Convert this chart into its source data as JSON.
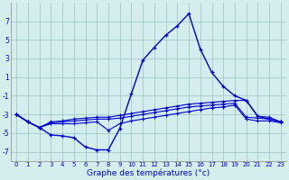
{
  "xlabel": "Graphe des températures (°c)",
  "x": [
    0,
    1,
    2,
    3,
    4,
    5,
    6,
    7,
    8,
    9,
    10,
    11,
    12,
    13,
    14,
    15,
    16,
    17,
    18,
    19,
    20,
    21,
    22,
    23
  ],
  "y_main": [
    -3.0,
    -3.8,
    -4.4,
    -5.2,
    -5.3,
    -5.5,
    -6.5,
    -6.8,
    -6.8,
    -4.5,
    -0.8,
    2.8,
    4.2,
    5.5,
    6.5,
    7.8,
    4.0,
    1.5,
    0.0,
    -1.0,
    -1.5,
    -3.2,
    -3.5,
    -3.8
  ],
  "y_mid1": [
    -3.0,
    -3.8,
    -4.4,
    -3.8,
    -3.7,
    -3.5,
    -3.4,
    -3.3,
    -3.3,
    -3.1,
    -2.9,
    -2.7,
    -2.5,
    -2.3,
    -2.1,
    -1.9,
    -1.8,
    -1.7,
    -1.6,
    -1.5,
    -1.5,
    -3.2,
    -3.3,
    -3.8
  ],
  "y_mid2": [
    -3.0,
    -3.8,
    -4.4,
    -3.9,
    -3.8,
    -3.7,
    -3.6,
    -3.5,
    -3.5,
    -3.4,
    -3.2,
    -3.0,
    -2.8,
    -2.6,
    -2.4,
    -2.2,
    -2.1,
    -2.0,
    -1.9,
    -1.8,
    -3.3,
    -3.4,
    -3.5,
    -3.8
  ],
  "y_bot": [
    -3.0,
    -3.8,
    -4.4,
    -4.0,
    -4.0,
    -4.0,
    -3.9,
    -3.8,
    -4.7,
    -4.0,
    -3.7,
    -3.5,
    -3.3,
    -3.1,
    -2.9,
    -2.7,
    -2.5,
    -2.3,
    -2.2,
    -2.0,
    -3.5,
    -3.7,
    -3.7,
    -3.9
  ],
  "ylim": [
    -8,
    9
  ],
  "yticks": [
    -7,
    -5,
    -3,
    -1,
    1,
    3,
    5,
    7
  ],
  "xticks": [
    0,
    1,
    2,
    3,
    4,
    5,
    6,
    7,
    8,
    9,
    10,
    11,
    12,
    13,
    14,
    15,
    16,
    17,
    18,
    19,
    20,
    21,
    22,
    23
  ],
  "line_color": "#0000cc",
  "bg_color": "#d4eeee",
  "grid_color": "#9bbfbf",
  "marker": "+"
}
